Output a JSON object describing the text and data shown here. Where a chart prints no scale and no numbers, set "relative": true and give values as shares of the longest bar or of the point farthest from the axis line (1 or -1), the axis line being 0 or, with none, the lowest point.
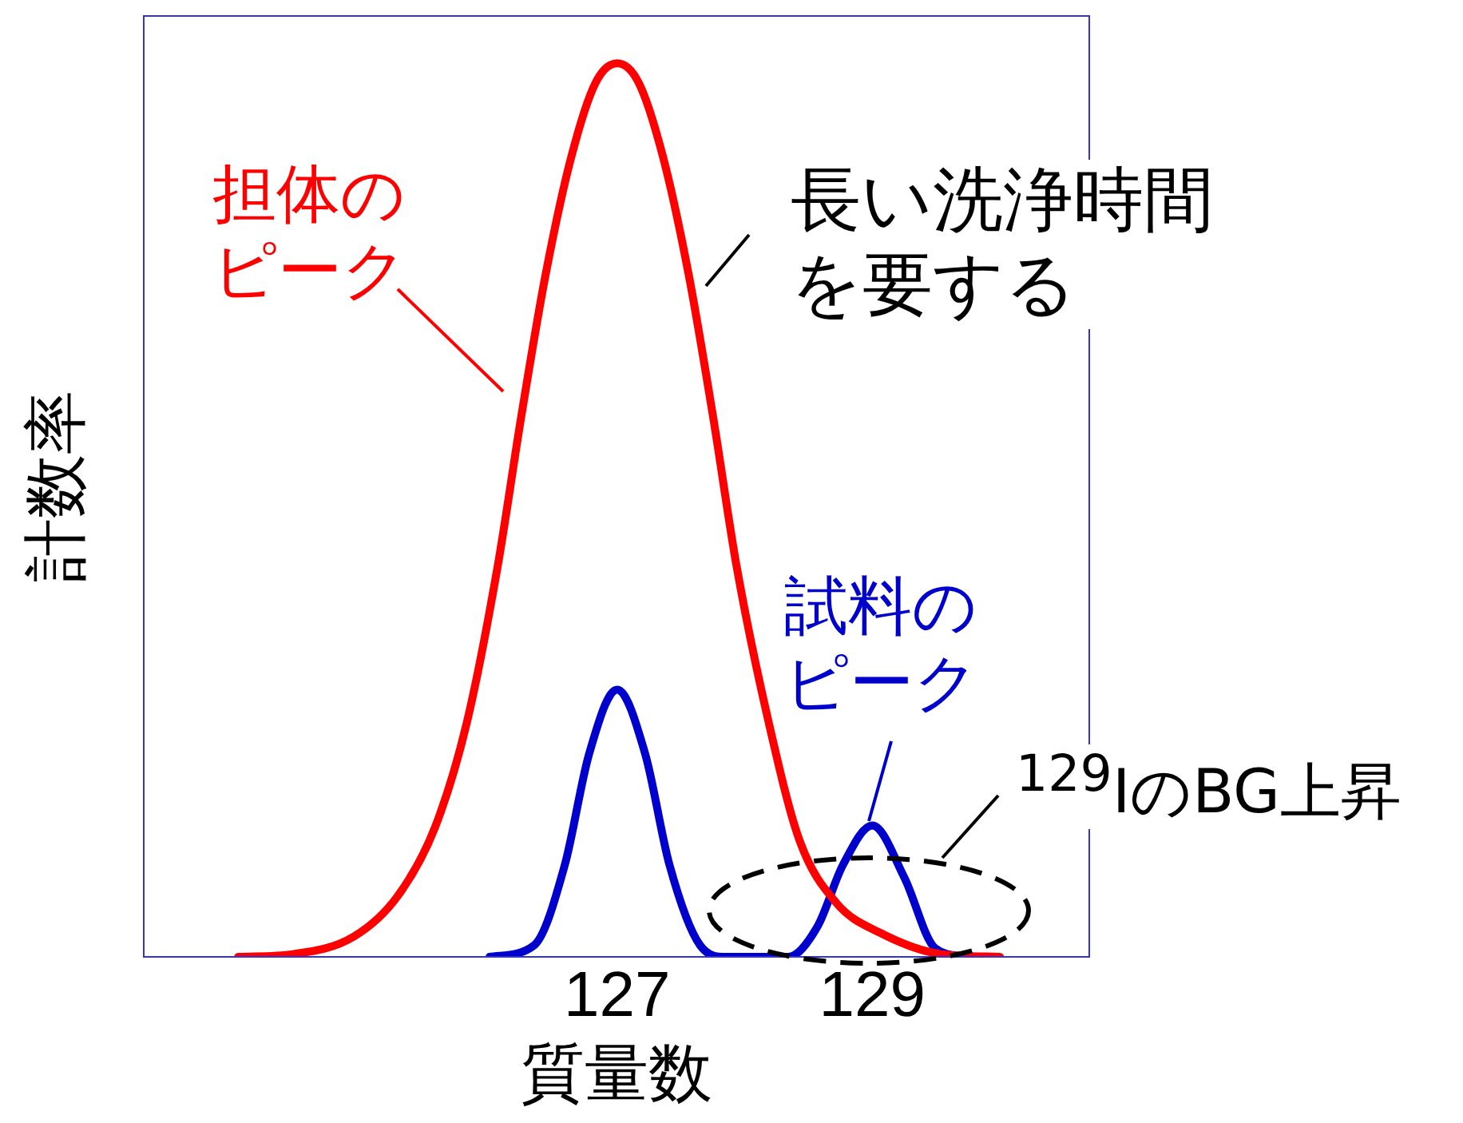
{
  "chart_data": {
    "type": "line",
    "relative": true,
    "xlabel": "質量数",
    "ylabel": "計数率",
    "xlim": [
      123.29,
      130.7
    ],
    "xticks": [
      127,
      129
    ],
    "grid": false,
    "legend": false,
    "marker": "none",
    "line_style": "solid",
    "series": [
      {
        "color": "#ff0000",
        "x": [
          124.03,
          124.46,
          124.94,
          125.28,
          125.57,
          125.82,
          126.06,
          126.25,
          126.44,
          126.64,
          126.83,
          127,
          127.17,
          127.36,
          127.56,
          127.75,
          127.94,
          128.19,
          128.43,
          128.72,
          129.06,
          129.54,
          130.0
        ],
        "values": [
          0,
          0.003,
          0.023,
          0.068,
          0.144,
          0.261,
          0.434,
          0.606,
          0.764,
          0.895,
          0.978,
          1,
          0.978,
          0.895,
          0.764,
          0.606,
          0.434,
          0.261,
          0.13,
          0.06,
          0.027,
          0.003,
          0
        ]
      },
      {
        "color": "#0000cc",
        "x": [
          126.0,
          126.35,
          126.59,
          126.78,
          127,
          127.22,
          127.41,
          127.65,
          127.85,
          128.34,
          128.57,
          128.77,
          129.0,
          129.25,
          129.49,
          129.75
        ],
        "values": [
          0,
          0.013,
          0.103,
          0.227,
          0.299,
          0.227,
          0.103,
          0.013,
          0,
          0,
          0.034,
          0.103,
          0.147,
          0.089,
          0.01,
          0
        ]
      }
    ],
    "annotations": [
      "担体のピーク",
      "長い洗浄時間を要する",
      "試料のピーク",
      "$^{129}$IのBG上昇"
    ]
  }
}
